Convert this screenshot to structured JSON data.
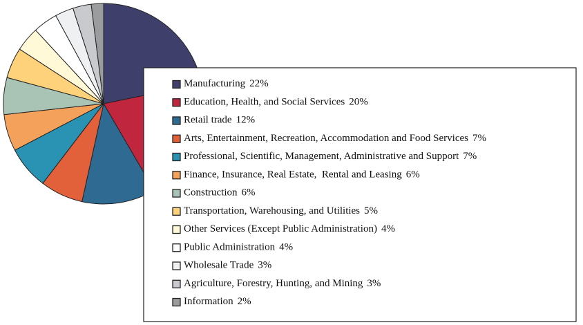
{
  "chart_data": {
    "type": "pie",
    "categories": [
      "Manufacturing",
      "Education, Health, and Social Services",
      "Retail trade",
      "Arts, Entertainment, Recreation, Accommodation and Food Services",
      "Professional, Scientific, Management, Administrative and Support",
      "Finance, Insurance, Real Estate,  Rental and Leasing",
      "Construction",
      "Transportation, Warehousing, and Utilities",
      "Other Services (Except Public Administration)",
      "Public Administration",
      "Wholesale Trade",
      "Agriculture, Forestry, Hunting, and Mining",
      "Information"
    ],
    "values": [
      22,
      20,
      12,
      7,
      7,
      6,
      6,
      5,
      4,
      4,
      3,
      3,
      2
    ],
    "value_labels": [
      "22%",
      "20%",
      "12%",
      "7%",
      "7%",
      "6%",
      "6%",
      "5%",
      "4%",
      "4%",
      "3%",
      "3%",
      "2%"
    ],
    "colors": [
      "#3f3f6c",
      "#c0273f",
      "#2f6a92",
      "#e2613b",
      "#2a93b3",
      "#f4a25b",
      "#a9c3b5",
      "#fdd27b",
      "#fff9d8",
      "#ffffff",
      "#eef0f2",
      "#c8cacd",
      "#9b9c9e"
    ],
    "legend": "lower-right"
  }
}
